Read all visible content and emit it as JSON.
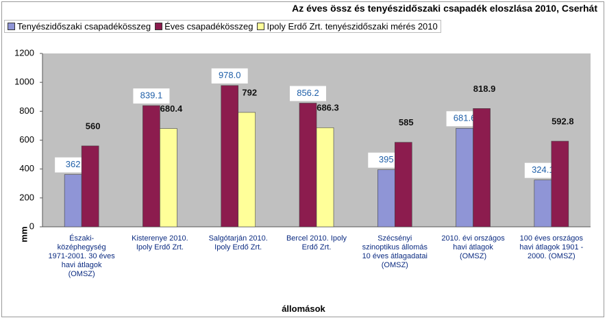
{
  "chart_data": {
    "type": "bar",
    "title": "Az éves össz és tenyészidőszaki csapadék eloszlása 2010, Cserhát",
    "x_label": "állomások",
    "y_label": "mm",
    "categories": [
      "Északi-középhegység 1971-2001. 30 éves havi átlagok (OMSZ)",
      "Kisterenye 2010. Ipoly Erdő Zrt.",
      "Salgótarján 2010. Ipoly Erdő Zrt.",
      "Bercel 2010. Ipoly Erdő Zrt.",
      "Szécsényi szinoptikus állomás 10 éves átlagadatai (OMSZ)",
      "2010. évi országos havi átlagok (OMSZ)",
      "100 éves országos havi átlagok 1901 - 2000. (OMSZ)"
    ],
    "series": [
      {
        "name": "Tenyészidőszaki csapadékösszeg",
        "color": "#8f95d6",
        "values": [
          362,
          null,
          null,
          null,
          395,
          681.6,
          324.1
        ]
      },
      {
        "name": "Éves csapadékösszeg",
        "color": "#8c1c4e",
        "values": [
          560,
          839.1,
          978.0,
          856.2,
          585,
          818.9,
          592.8
        ],
        "value_labels": [
          "560",
          "839.1",
          "978.0",
          "856.2",
          "585",
          "818.9",
          "592.8"
        ]
      },
      {
        "name": "Ipoly Erdő Zrt. tenyészidőszaki mérés 2010",
        "color": "#ffff99",
        "values": [
          null,
          680.4,
          792,
          686.3,
          null,
          null,
          null
        ]
      }
    ],
    "ylim": [
      0,
      1200
    ],
    "yticks": [
      0,
      200,
      400,
      600,
      800,
      1000,
      1200
    ],
    "grid": false
  }
}
